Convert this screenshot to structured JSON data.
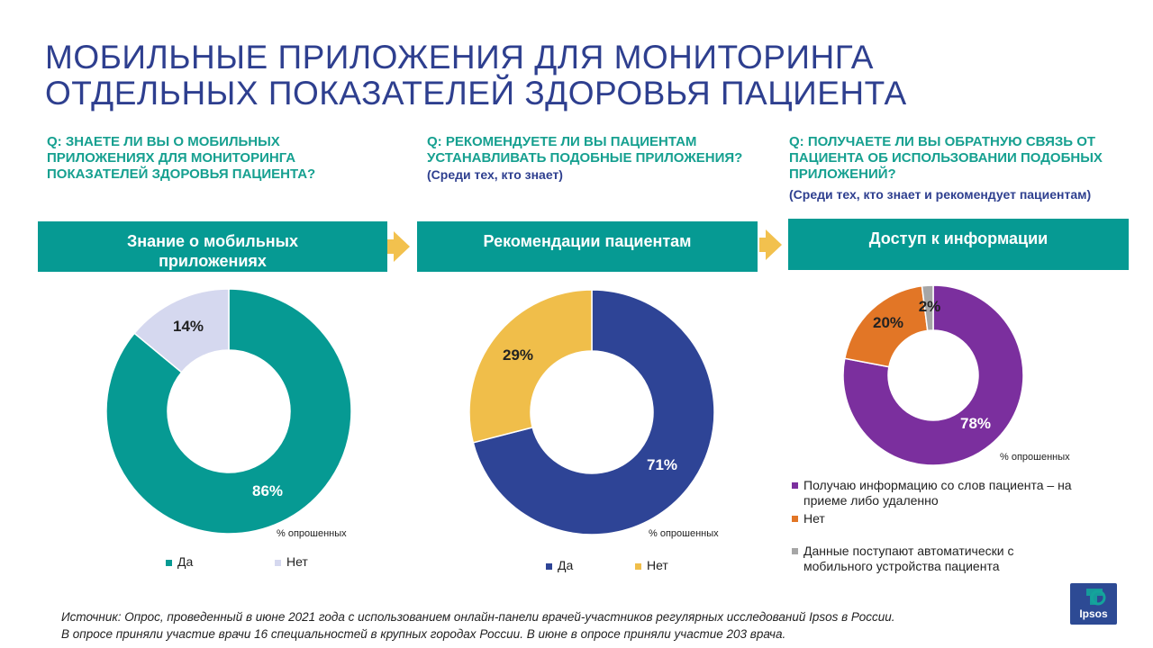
{
  "title": {
    "line1": "МОБИЛЬНЫЕ ПРИЛОЖЕНИЯ ДЛЯ МОНИТОРИНГА",
    "line2": "ОТДЕЛЬНЫХ ПОКАЗАТЕЛЕЙ ЗДОРОВЬЯ ПАЦИЕНТА"
  },
  "panels": [
    {
      "question": "Q: ЗНАЕТЕ ЛИ ВЫ О МОБИЛЬНЫХ ПРИЛОЖЕНИЯХ ДЛЯ МОНИТОРИНГА ПОКАЗАТЕЛЕЙ ЗДОРОВЬЯ ПАЦИЕНТА?",
      "subnote": "",
      "header": "Знание о мобильных приложениях"
    },
    {
      "question": "Q: РЕКОМЕНДУЕТЕ ЛИ ВЫ ПАЦИЕНТАМ УСТАНАВЛИВАТЬ ПОДОБНЫЕ ПРИЛОЖЕНИЯ?",
      "subnote": "(Среди тех, кто знает)",
      "header": "Рекомендации пациентам"
    },
    {
      "question": "Q: ПОЛУЧАЕТЕ ЛИ ВЫ ОБРАТНУЮ СВЯЗЬ ОТ ПАЦИЕНТА ОБ ИСПОЛЬЗОВАНИИ ПОДОБНЫХ ПРИЛОЖЕНИЙ?",
      "subnote": "(Среди тех, кто знает и рекомендует пациентам)",
      "header": "Доступ к информации"
    }
  ],
  "percent_note": "% опрошенных",
  "chart_data": [
    {
      "type": "pie",
      "title": "Знание о мобильных приложениях",
      "categories": [
        "Да",
        "Нет"
      ],
      "values": [
        86,
        14
      ],
      "labels": [
        "86%",
        "14%"
      ],
      "colors": [
        "#069a93",
        "#d5d8ef"
      ],
      "label_colors": [
        "#ffffff",
        "#222222"
      ],
      "legend": [
        "Да",
        "Нет"
      ]
    },
    {
      "type": "pie",
      "title": "Рекомендации пациентам",
      "categories": [
        "Да",
        "Нет"
      ],
      "values": [
        71,
        29
      ],
      "labels": [
        "71%",
        "29%"
      ],
      "colors": [
        "#2e4496",
        "#f0be4a"
      ],
      "label_colors": [
        "#ffffff",
        "#222222"
      ],
      "legend": [
        "Да",
        "Нет"
      ]
    },
    {
      "type": "pie",
      "title": "Доступ к информации",
      "categories": [
        "Получаю информацию со слов пациента – на приеме либо удаленно",
        "Нет",
        "Данные поступают автоматически с мобильного устройства пациента"
      ],
      "values": [
        78,
        20,
        2
      ],
      "labels": [
        "78%",
        "20%",
        "2%"
      ],
      "colors": [
        "#7b2f9e",
        "#e27626",
        "#a6a6a6"
      ],
      "label_colors": [
        "#ffffff",
        "#222222",
        "#222222"
      ],
      "legend": [
        "Получаю информацию со слов пациента – на приеме либо удаленно",
        "Нет",
        "Данные поступают автоматически с мобильного устройства пациента"
      ]
    }
  ],
  "source": {
    "line1": "Источник: Опрос, проведенный в июне 2021 года с использованием онлайн-панели врачей-участников регулярных исследований Ipsos в России.",
    "line2": "В опросе приняли участие врачи 16 специальностей в крупных городах России. В июне в опросе приняли участие 203 врача."
  },
  "logo": {
    "text": "Ipsos"
  }
}
